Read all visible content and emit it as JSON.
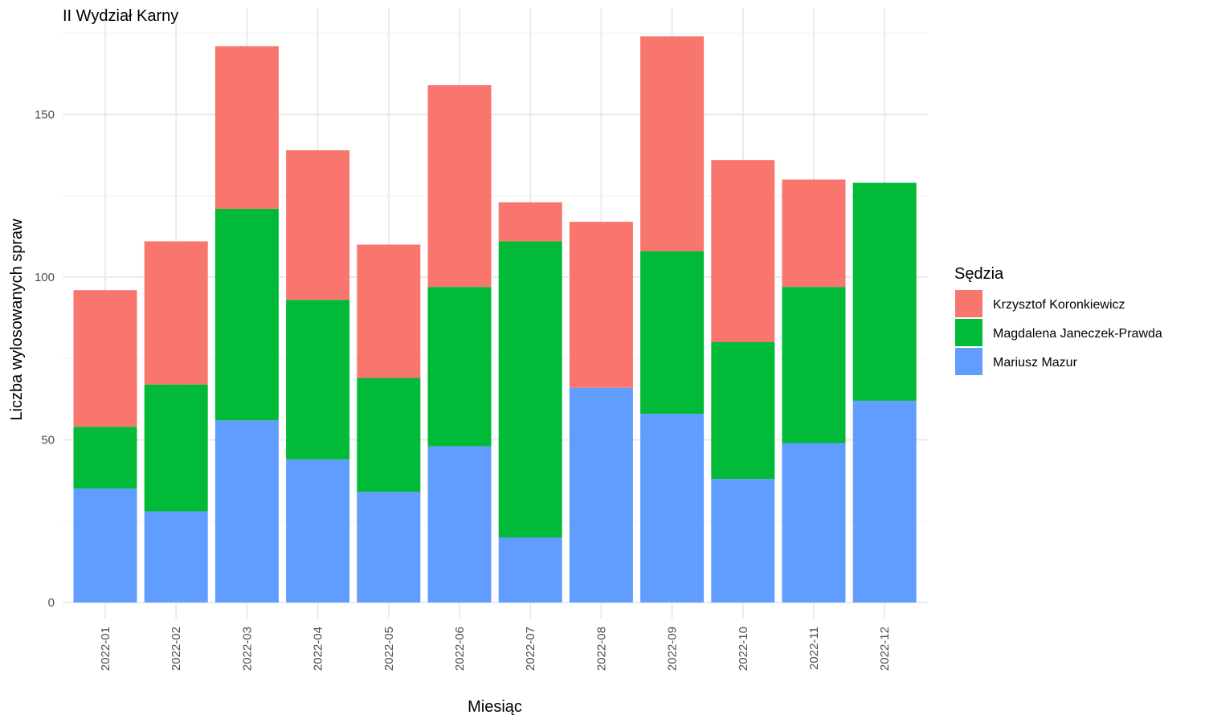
{
  "chart_data": {
    "type": "bar",
    "stacked": true,
    "title": "II Wydział Karny",
    "xlabel": "Miesiąc",
    "ylabel": "Liczba wylosowanych spraw",
    "categories": [
      "2022-01",
      "2022-02",
      "2022-03",
      "2022-04",
      "2022-05",
      "2022-06",
      "2022-07",
      "2022-08",
      "2022-09",
      "2022-10",
      "2022-11",
      "2022-12"
    ],
    "ylim": [
      0,
      180
    ],
    "yticks": [
      0,
      50,
      100,
      150
    ],
    "grid": true,
    "legend": {
      "title": "Sędzia",
      "position": "right"
    },
    "series": [
      {
        "name": "Mariusz Mazur",
        "color": "#619CFF",
        "values": [
          35,
          28,
          56,
          44,
          34,
          48,
          20,
          66,
          58,
          38,
          49,
          62
        ]
      },
      {
        "name": "Magdalena Janeczek-Prawda",
        "color": "#00BA38",
        "values": [
          19,
          39,
          65,
          49,
          35,
          49,
          91,
          0,
          50,
          42,
          48,
          67
        ]
      },
      {
        "name": "Krzysztof Koronkiewicz",
        "color": "#F8766D",
        "values": [
          42,
          44,
          50,
          46,
          41,
          62,
          12,
          51,
          66,
          56,
          33,
          0
        ]
      }
    ],
    "legend_order": [
      "Krzysztof Koronkiewicz",
      "Magdalena Janeczek-Prawda",
      "Mariusz Mazur"
    ]
  }
}
